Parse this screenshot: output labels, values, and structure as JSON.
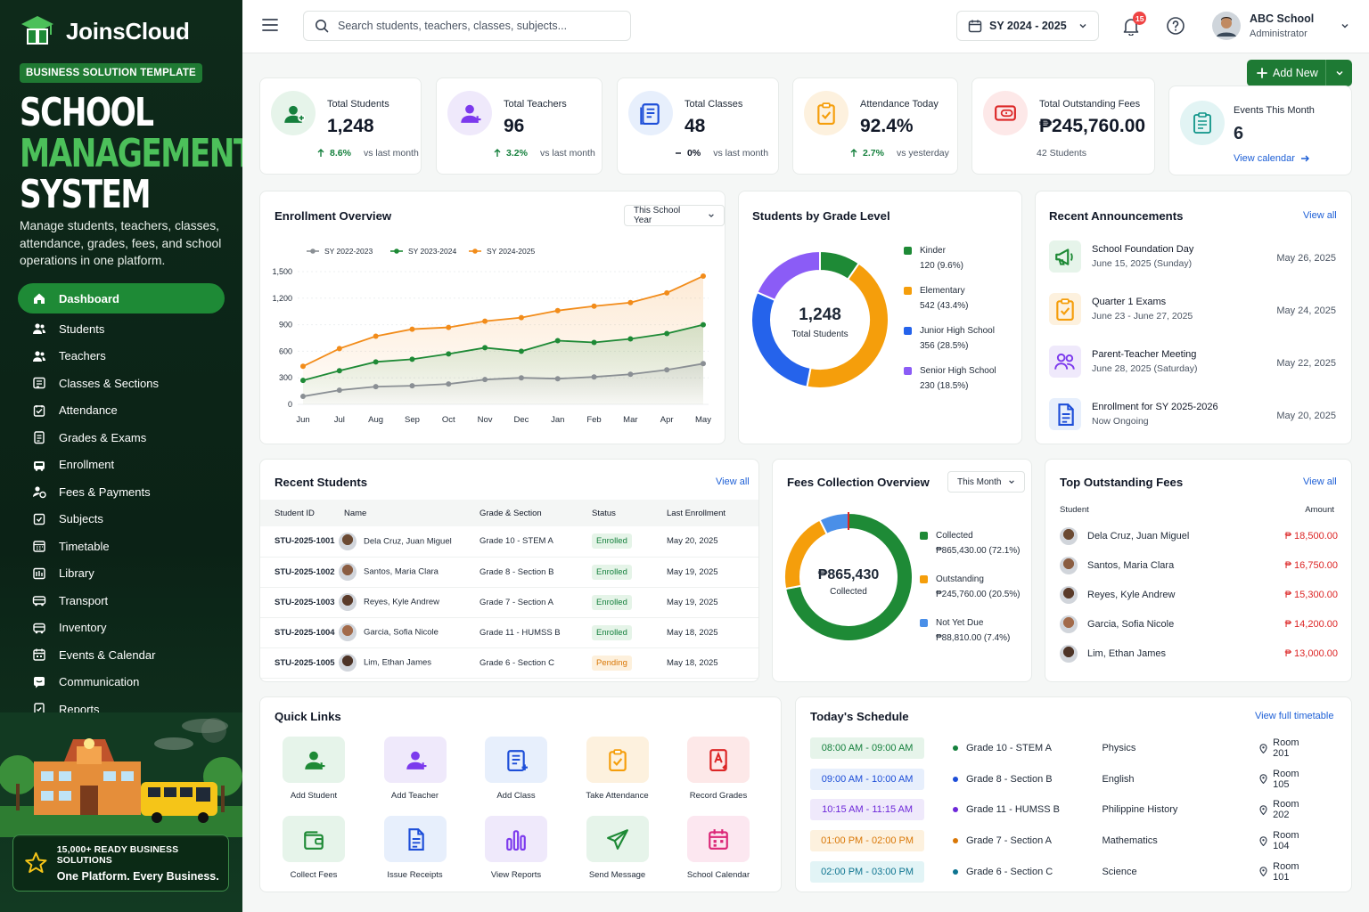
{
  "brand": {
    "name": "JoinsCloud",
    "template_badge": "BUSINESS SOLUTION TEMPLATE",
    "title_l1": "SCHOOL",
    "title_l2": "MANAGEMENT",
    "title_l3": "SYSTEM",
    "tagline": "Manage students, teachers, classes, attendance, grades, fees, and school operations in one platform."
  },
  "nav": [
    {
      "label": "Dashboard",
      "icon": "home-icon",
      "active": true
    },
    {
      "label": "Students",
      "icon": "users-icon"
    },
    {
      "label": "Teachers",
      "icon": "users-icon"
    },
    {
      "label": "Classes & Sections",
      "icon": "classes-icon"
    },
    {
      "label": "Attendance",
      "icon": "attendance-icon"
    },
    {
      "label": "Grades & Exams",
      "icon": "grades-icon"
    },
    {
      "label": "Enrollment",
      "icon": "enrollment-icon"
    },
    {
      "label": "Fees & Payments",
      "icon": "fees-icon"
    },
    {
      "label": "Subjects",
      "icon": "subjects-icon"
    },
    {
      "label": "Timetable",
      "icon": "timetable-icon"
    },
    {
      "label": "Library",
      "icon": "library-icon"
    },
    {
      "label": "Transport",
      "icon": "transport-icon"
    },
    {
      "label": "Inventory",
      "icon": "inventory-icon"
    },
    {
      "label": "Events & Calendar",
      "icon": "calendar-icon"
    },
    {
      "label": "Communication",
      "icon": "chat-icon"
    },
    {
      "label": "Reports",
      "icon": "reports-icon"
    }
  ],
  "promo": {
    "line1": "15,000+ READY BUSINESS SOLUTIONS",
    "line2": "One Platform. Every Business."
  },
  "topbar": {
    "search_placeholder": "Search students, teachers, classes, subjects...",
    "school_year": "SY 2024 - 2025",
    "notif_count": "15",
    "user_name": "ABC School",
    "user_role": "Administrator"
  },
  "add_new": "Add New",
  "stats": [
    {
      "label": "Total Students",
      "value": "1,248",
      "change": "8.6%",
      "note": "vs last month",
      "trend": "up",
      "color": "#15803d",
      "bg": "#e6f4ea"
    },
    {
      "label": "Total Teachers",
      "value": "96",
      "change": "3.2%",
      "note": "vs last month",
      "trend": "up",
      "color": "#7c3aed",
      "bg": "#efe9fb"
    },
    {
      "label": "Total Classes",
      "value": "48",
      "change": "0%",
      "note": "vs last month",
      "trend": "flat",
      "color": "#1d4ed8",
      "bg": "#e7effc"
    },
    {
      "label": "Attendance Today",
      "value": "92.4%",
      "change": "2.7%",
      "note": "vs yesterday",
      "trend": "up",
      "color": "#f59e0b",
      "bg": "#fdf1de"
    },
    {
      "label": "Total Outstanding Fees",
      "value": "₱245,760.00",
      "note": "42 Students",
      "color": "#dc2626",
      "bg": "#fde8e8"
    }
  ],
  "events": {
    "label": "Events This Month",
    "value": "6",
    "link": "View calendar"
  },
  "enrollment": {
    "title": "Enrollment Overview",
    "filter": "This School Year"
  },
  "chart_data": [
    {
      "type": "line",
      "title": "Enrollment Overview",
      "categories": [
        "Jun",
        "Jul",
        "Aug",
        "Sep",
        "Oct",
        "Nov",
        "Dec",
        "Jan",
        "Feb",
        "Mar",
        "Apr",
        "May"
      ],
      "ylim": [
        0,
        1500
      ],
      "yticks": [
        "0",
        "300",
        "600",
        "900",
        "1,200",
        "1,500"
      ],
      "grid": true,
      "legend": "top",
      "series": [
        {
          "name": "SY 2022-2023",
          "color": "#8a8f94",
          "values": [
            90,
            160,
            200,
            210,
            230,
            280,
            300,
            290,
            310,
            340,
            390,
            460
          ]
        },
        {
          "name": "SY 2023-2024",
          "color": "#1e8a36",
          "values": [
            270,
            380,
            480,
            510,
            570,
            640,
            600,
            720,
            700,
            740,
            800,
            900
          ]
        },
        {
          "name": "SY 2024-2025",
          "color": "#f28c1a",
          "values": [
            430,
            630,
            770,
            850,
            870,
            940,
            980,
            1060,
            1110,
            1150,
            1260,
            1450
          ]
        }
      ]
    },
    {
      "type": "pie",
      "title": "Students by Grade Level",
      "center_value": "1,248",
      "center_label": "Total Students",
      "legend": "right",
      "slices": [
        {
          "name": "Kinder",
          "value": 120,
          "label": "120 (9.6%)",
          "color": "#1e8a36"
        },
        {
          "name": "Elementary",
          "value": 542,
          "label": "542 (43.4%)",
          "color": "#f59e0b"
        },
        {
          "name": "Junior High School",
          "value": 356,
          "label": "356 (28.5%)",
          "color": "#2563eb"
        },
        {
          "name": "Senior High School",
          "value": 230,
          "label": "230 (18.5%)",
          "color": "#8b5cf6"
        }
      ]
    },
    {
      "type": "pie",
      "title": "Fees Collection Overview",
      "center_value": "₱865,430",
      "center_label": "Collected",
      "legend": "right",
      "slices": [
        {
          "name": "Collected",
          "value": 72.1,
          "label": "₱865,430.00 (72.1%)",
          "color": "#1e8a36"
        },
        {
          "name": "Outstanding",
          "value": 20.5,
          "label": "₱245,760.00 (20.5%)",
          "color": "#f59e0b"
        },
        {
          "name": "Not Yet Due",
          "value": 7.4,
          "label": "₱88,810.00 (7.4%)",
          "color": "#4a8fe8"
        }
      ]
    }
  ],
  "grade": {
    "title": "Students by Grade Level"
  },
  "announcements": {
    "title": "Recent Announcements",
    "view_all": "View all",
    "items": [
      {
        "title": "School Foundation Day",
        "sub": "June 15, 2025 (Sunday)",
        "date": "May 26, 2025",
        "icon": "megaphone-icon",
        "color": "#1e8a36",
        "bg": "#e6f4ea"
      },
      {
        "title": "Quarter 1 Exams",
        "sub": "June 23 - June 27, 2025",
        "date": "May 24, 2025",
        "icon": "clipboard-icon",
        "color": "#f59e0b",
        "bg": "#fdf1de"
      },
      {
        "title": "Parent-Teacher Meeting",
        "sub": "June 28, 2025 (Saturday)",
        "date": "May 22, 2025",
        "icon": "people-icon",
        "color": "#7c3aed",
        "bg": "#efe9fb"
      },
      {
        "title": "Enrollment for SY 2025-2026",
        "sub": "Now Ongoing",
        "date": "May 20, 2025",
        "icon": "document-icon",
        "color": "#1d4ed8",
        "bg": "#e7effc"
      }
    ]
  },
  "recent_students": {
    "title": "Recent Students",
    "view_all": "View all",
    "columns": [
      "Student ID",
      "Name",
      "Grade & Section",
      "Status",
      "Last Enrollment"
    ],
    "rows": [
      {
        "id": "STU-2025-1001",
        "name": "Dela Cruz, Juan Miguel",
        "grade": "Grade 10 - STEM A",
        "status": "Enrolled",
        "date": "May 20, 2025"
      },
      {
        "id": "STU-2025-1002",
        "name": "Santos, Maria Clara",
        "grade": "Grade 8 - Section B",
        "status": "Enrolled",
        "date": "May 19, 2025"
      },
      {
        "id": "STU-2025-1003",
        "name": "Reyes, Kyle Andrew",
        "grade": "Grade 7 - Section A",
        "status": "Enrolled",
        "date": "May 19, 2025"
      },
      {
        "id": "STU-2025-1004",
        "name": "Garcia, Sofia Nicole",
        "grade": "Grade 11 - HUMSS B",
        "status": "Enrolled",
        "date": "May 18, 2025"
      },
      {
        "id": "STU-2025-1005",
        "name": "Lim, Ethan James",
        "grade": "Grade 6 - Section C",
        "status": "Pending",
        "date": "May 18, 2025"
      }
    ]
  },
  "fees": {
    "title": "Fees Collection Overview",
    "filter": "This Month"
  },
  "outstanding": {
    "title": "Top Outstanding Fees",
    "view_all": "View all",
    "col_student": "Student",
    "col_amount": "Amount",
    "rows": [
      {
        "name": "Dela Cruz, Juan Miguel",
        "amount": "₱ 18,500.00"
      },
      {
        "name": "Santos, Maria Clara",
        "amount": "₱ 16,750.00"
      },
      {
        "name": "Reyes, Kyle Andrew",
        "amount": "₱ 15,300.00"
      },
      {
        "name": "Garcia, Sofia Nicole",
        "amount": "₱ 14,200.00"
      },
      {
        "name": "Lim, Ethan James",
        "amount": "₱ 13,000.00"
      }
    ]
  },
  "quick_links": {
    "title": "Quick Links",
    "items": [
      {
        "label": "Add Student",
        "icon": "add-student-icon",
        "color": "#1e8a36",
        "bg": "#e6f4ea"
      },
      {
        "label": "Add Teacher",
        "icon": "add-teacher-icon",
        "color": "#7c3aed",
        "bg": "#efe9fb"
      },
      {
        "label": "Add Class",
        "icon": "add-class-icon",
        "color": "#1d4ed8",
        "bg": "#e7effc"
      },
      {
        "label": "Take Attendance",
        "icon": "attendance-icon",
        "color": "#f59e0b",
        "bg": "#fdf1de"
      },
      {
        "label": "Record Grades",
        "icon": "grades-icon",
        "color": "#dc2626",
        "bg": "#fde8e8"
      },
      {
        "label": "Collect Fees",
        "icon": "wallet-icon",
        "color": "#1e8a36",
        "bg": "#e6f4ea"
      },
      {
        "label": "Issue Receipts",
        "icon": "receipt-icon",
        "color": "#1d4ed8",
        "bg": "#e7effc"
      },
      {
        "label": "View Reports",
        "icon": "bar-chart-icon",
        "color": "#7c3aed",
        "bg": "#efe9fb"
      },
      {
        "label": "Send Message",
        "icon": "send-icon",
        "color": "#1e8a36",
        "bg": "#e6f4ea"
      },
      {
        "label": "School Calendar",
        "icon": "calendar-icon",
        "color": "#db2777",
        "bg": "#fce7f0"
      }
    ]
  },
  "schedule": {
    "title": "Today's Schedule",
    "link": "View full timetable",
    "rows": [
      {
        "time": "08:00 AM - 09:00 AM",
        "cls": "Grade 10 - STEM A",
        "subject": "Physics",
        "room": "Room 201",
        "color": "#15803d",
        "bg": "#e6f4ea"
      },
      {
        "time": "09:00 AM - 10:00 AM",
        "cls": "Grade 8 - Section B",
        "subject": "English",
        "room": "Room 105",
        "color": "#1d4ed8",
        "bg": "#e7effc"
      },
      {
        "time": "10:15 AM - 11:15 AM",
        "cls": "Grade 11 - HUMSS B",
        "subject": "Philippine History",
        "room": "Room 202",
        "color": "#6d28d9",
        "bg": "#efe9fb"
      },
      {
        "time": "01:00 PM - 02:00 PM",
        "cls": "Grade 7 - Section A",
        "subject": "Mathematics",
        "room": "Room 104",
        "color": "#d97706",
        "bg": "#fdf1de"
      },
      {
        "time": "02:00 PM - 03:00 PM",
        "cls": "Grade 6 - Section C",
        "subject": "Science",
        "room": "Room 101",
        "color": "#0e7490",
        "bg": "#e2f4f6"
      }
    ]
  }
}
